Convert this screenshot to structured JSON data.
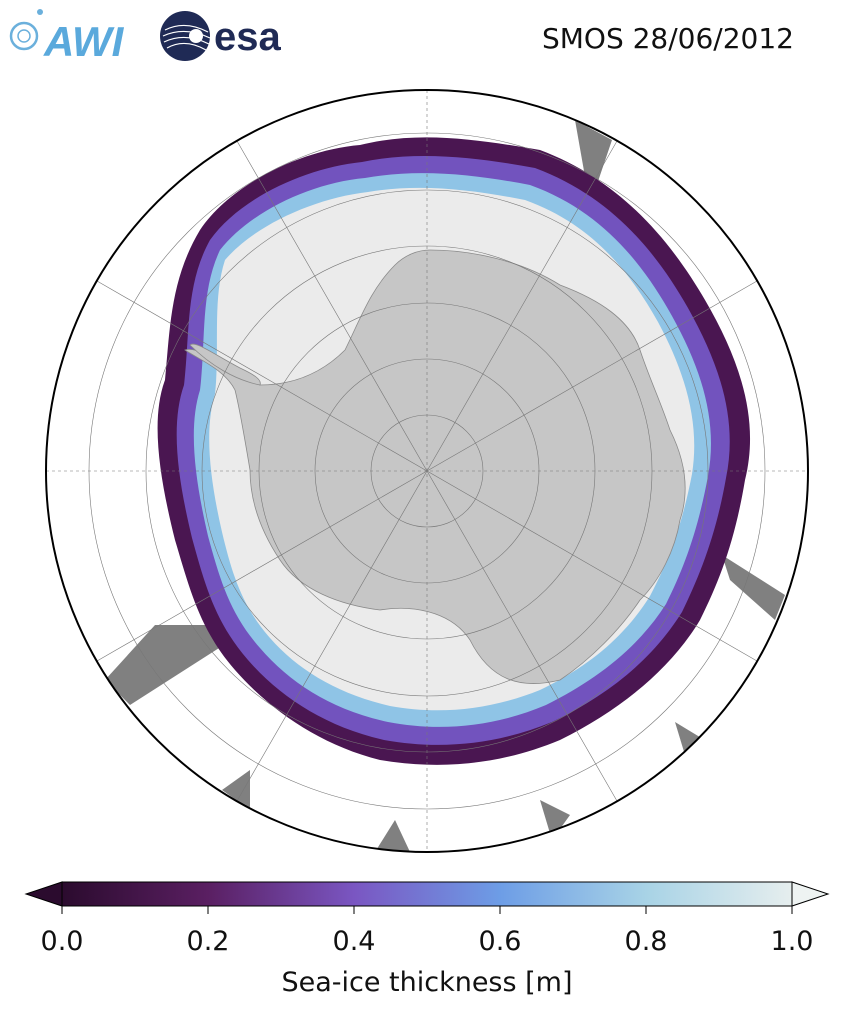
{
  "logos": {
    "awi": "AWI",
    "esa": "esa"
  },
  "title": "SMOS 28/06/2012",
  "colorbar": {
    "label": "Sea-ice thickness [m]",
    "ticks": [
      "0.0",
      "0.2",
      "0.4",
      "0.6",
      "0.8",
      "1.0"
    ],
    "min": 0.0,
    "max": 1.0,
    "colors": [
      "#2b0b2e",
      "#5a1f62",
      "#7a56c2",
      "#6d9de6",
      "#a8d3e6",
      "#e6eeee"
    ]
  },
  "map": {
    "projection": "south-polar-stereographic",
    "land_color": "#c6c6c6",
    "thick_ice_color": "#ebebeb",
    "missing_data_color": "#808080"
  }
}
